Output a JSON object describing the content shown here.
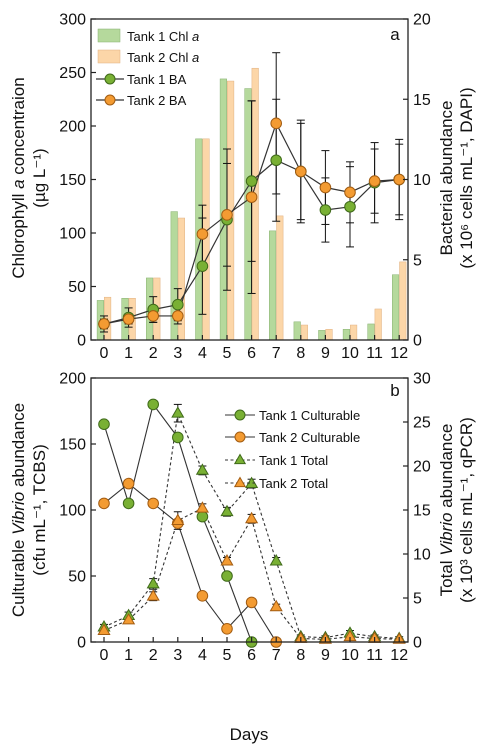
{
  "chart_data": [
    {
      "panel": "a",
      "type": "bar+line",
      "x_categories": [
        "0",
        "1",
        "2",
        "3",
        "4",
        "5",
        "6",
        "7",
        "8",
        "9",
        "10",
        "11",
        "12"
      ],
      "left_axis": {
        "label": "Chlorophyll a concentraion",
        "label_parts": [
          "Chlorophyll ",
          "a",
          " concentraion"
        ],
        "unit_line": "(µg L⁻¹)",
        "ylim": [
          0,
          300
        ],
        "ticks": [
          "0",
          "50",
          "100",
          "150",
          "200",
          "250",
          "300"
        ]
      },
      "right_axis": {
        "label": "Bacterial abundance",
        "unit_line": "(x 10⁶ cells mL⁻¹, DAPI)",
        "ylim": [
          0,
          20
        ],
        "ticks": [
          "0",
          "5",
          "10",
          "15",
          "20"
        ]
      },
      "series": [
        {
          "name": "Tank 1 Chl a",
          "name_parts": [
            "Tank 1 Chl ",
            "a"
          ],
          "kind": "bar",
          "axis": "left",
          "color": "#b5d99c",
          "edge": "#86b070",
          "values": [
            37,
            39,
            58,
            120,
            188,
            244,
            235,
            102,
            17,
            9,
            10,
            15,
            61
          ]
        },
        {
          "name": "Tank 2 Chl a",
          "name_parts": [
            "Tank 2 Chl ",
            "a"
          ],
          "kind": "bar",
          "axis": "left",
          "color": "#fcd6a8",
          "edge": "#e0b080",
          "values": [
            40,
            39,
            58,
            114,
            188,
            242,
            254,
            116,
            14,
            10,
            14,
            29,
            73
          ]
        },
        {
          "name": "Tank 1 BA",
          "kind": "line",
          "axis": "right",
          "color": "#79b034",
          "edge": "#3f6a1a",
          "marker": "circle",
          "values": [
            1.0,
            1.4,
            1.9,
            2.2,
            4.6,
            7.5,
            9.9,
            11.2,
            10.5,
            8.1,
            8.3,
            9.8,
            10.0
          ],
          "err": [
            0.5,
            0.6,
            0.8,
            1.0,
            3.0,
            4.4,
            5.0,
            3.8,
            3.0,
            2.0,
            2.5,
            2.5,
            2.2
          ]
        },
        {
          "name": "Tank 2 BA",
          "kind": "line",
          "axis": "right",
          "color": "#f39b32",
          "edge": "#a25c12",
          "marker": "circle",
          "values": [
            1.0,
            1.3,
            1.5,
            1.5,
            6.6,
            7.8,
            8.9,
            13.5,
            10.5,
            9.5,
            9.2,
            9.9,
            10.0
          ],
          "err": [
            0.3,
            0.3,
            0.4,
            0.5,
            1.8,
            3.2,
            6.0,
            4.4,
            3.2,
            2.3,
            1.9,
            2.0,
            2.5
          ]
        }
      ],
      "legend_position": "top-left",
      "panel_letter": "a",
      "grid": false
    },
    {
      "panel": "b",
      "type": "line",
      "x_categories": [
        "0",
        "1",
        "2",
        "3",
        "4",
        "5",
        "6",
        "7",
        "8",
        "9",
        "10",
        "11",
        "12"
      ],
      "xlabel": "Days",
      "left_axis": {
        "label": "Culturable Vibrio abundance",
        "label_parts": [
          "Culturable ",
          "Vibrio",
          " abundance"
        ],
        "unit_line": "(cfu mL⁻¹, TCBS)",
        "ylim": [
          0,
          200
        ],
        "ticks": [
          "0",
          "50",
          "100",
          "150",
          "200"
        ]
      },
      "right_axis": {
        "label": "Total Vibrio abundance",
        "label_parts": [
          "Total ",
          "Vibrio",
          " abundance"
        ],
        "unit_line": "(x 10³ cells mL⁻¹, qPCR)",
        "ylim": [
          0,
          30
        ],
        "ticks": [
          "0",
          "5",
          "10",
          "15",
          "20",
          "25",
          "30"
        ]
      },
      "series": [
        {
          "name": "Tank 1 Culturable",
          "axis": "left",
          "style": "solid",
          "marker": "circle",
          "color": "#79b034",
          "edge": "#3f6a1a",
          "values": [
            165,
            105,
            180,
            155,
            95,
            50,
            0,
            null,
            null,
            null,
            null,
            null,
            null
          ]
        },
        {
          "name": "Tank 2 Culturable",
          "axis": "left",
          "style": "solid",
          "marker": "circle",
          "color": "#f39b32",
          "edge": "#a25c12",
          "values": [
            105,
            120,
            105,
            90,
            35,
            10,
            30,
            0,
            null,
            null,
            null,
            null,
            null
          ]
        },
        {
          "name": "Tank 1 Total",
          "axis": "right",
          "style": "dashed",
          "marker": "triangle",
          "color": "#79b034",
          "edge": "#3f6a1a",
          "values": [
            1.7,
            3.0,
            6.6,
            26.0,
            19.5,
            14.8,
            18.0,
            9.2,
            0.6,
            0.5,
            1.0,
            0.6,
            0.4
          ],
          "err": [
            0.3,
            0.4,
            0.6,
            1.0,
            0.5,
            0.5,
            0.5,
            0.4,
            0.2,
            0.2,
            0.3,
            0.2,
            0.2
          ]
        },
        {
          "name": "Tank 2 Total",
          "axis": "right",
          "style": "dashed",
          "marker": "triangle",
          "color": "#f39b32",
          "edge": "#a25c12",
          "values": [
            1.3,
            2.5,
            5.2,
            13.8,
            15.2,
            9.2,
            14.0,
            4.0,
            0.4,
            0.3,
            0.6,
            0.4,
            0.3
          ],
          "err": [
            0.2,
            0.3,
            0.5,
            1.0,
            0.5,
            0.4,
            0.5,
            0.3,
            0.2,
            0.1,
            0.2,
            0.2,
            0.1
          ]
        }
      ],
      "legend_position": "top-right",
      "panel_letter": "b",
      "grid": false
    }
  ]
}
